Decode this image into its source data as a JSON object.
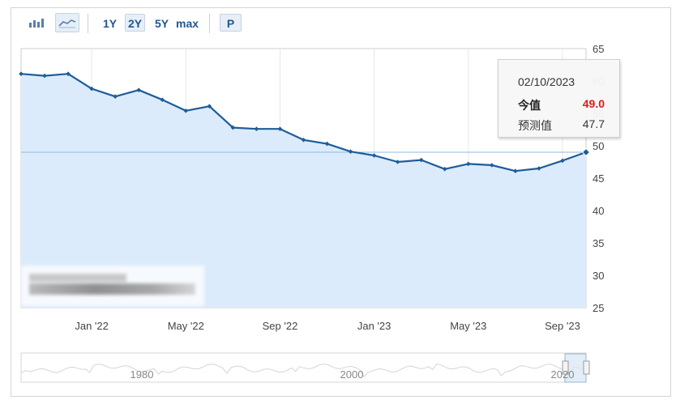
{
  "toolbar": {
    "range_buttons": [
      "1Y",
      "2Y",
      "5Y",
      "max"
    ],
    "active_range": "2Y",
    "print_button": "P",
    "icons": [
      "bar-chart-icon",
      "line-chart-icon"
    ],
    "active_icon": "line-chart-icon"
  },
  "tooltip": {
    "date": "02/10/2023",
    "actual_label": "今值",
    "actual_value": "49.0",
    "forecast_label": "预测值",
    "forecast_value": "47.7"
  },
  "colors": {
    "line": "#1f5c99",
    "area": "#dcebfb",
    "reference": "#8fb8e0",
    "actual_value": "#e01b1b"
  },
  "chart_data": {
    "type": "area",
    "y_axis_side": "right",
    "ylim": [
      25,
      65
    ],
    "y_ticks": [
      25,
      30,
      35,
      40,
      45,
      50,
      55,
      60,
      65
    ],
    "x_tick_labels": [
      "Jan '22",
      "May '22",
      "Sep '22",
      "Jan '23",
      "May '23",
      "Sep '23"
    ],
    "grid": "vertical",
    "reference_line": 49.0,
    "series": [
      {
        "x": [
          "2021-10",
          "2021-11",
          "2021-12",
          "2022-01",
          "2022-02",
          "2022-03",
          "2022-04",
          "2022-05",
          "2022-06",
          "2022-07",
          "2022-08",
          "2022-09",
          "2022-10",
          "2022-11",
          "2022-12",
          "2023-01",
          "2023-02",
          "2023-03",
          "2023-04",
          "2023-05",
          "2023-06",
          "2023-07",
          "2023-08",
          "2023-09",
          "2023-10"
        ],
        "values": [
          61.1,
          60.8,
          61.1,
          58.8,
          57.6,
          58.6,
          57.1,
          55.4,
          56.1,
          52.8,
          52.6,
          52.6,
          50.9,
          50.3,
          49.1,
          48.5,
          47.5,
          47.8,
          46.4,
          47.2,
          47.0,
          46.1,
          46.5,
          47.7,
          49.0
        ]
      }
    ],
    "navigator": {
      "labels": [
        "1980",
        "2000",
        "2020"
      ]
    }
  }
}
